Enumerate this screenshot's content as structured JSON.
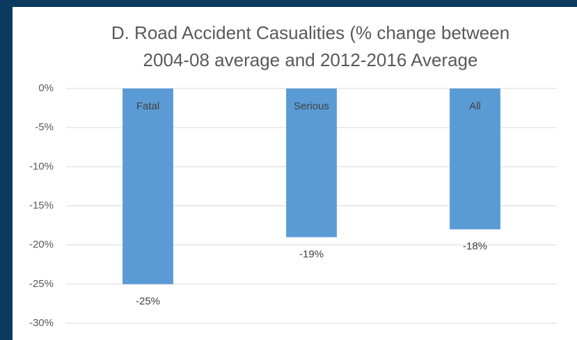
{
  "chart_data": {
    "type": "bar",
    "title": [
      "D. Road Accident Casualities (% change between",
      "2004-08 average and 2012-2016 Average"
    ],
    "categories": [
      "Fatal",
      "Serious",
      "All"
    ],
    "values": [
      -25,
      -19,
      -18
    ],
    "value_labels": [
      "-25%",
      "-19%",
      "-18%"
    ],
    "color": "#5b9bd5",
    "ylim": [
      -30,
      0
    ],
    "yticks": [
      {
        "value": 0,
        "label": "0%"
      },
      {
        "value": -5,
        "label": "-5%"
      },
      {
        "value": -10,
        "label": "-10%"
      },
      {
        "value": -15,
        "label": "-15%"
      },
      {
        "value": -20,
        "label": "-20%"
      },
      {
        "value": -25,
        "label": "-25%"
      },
      {
        "value": -30,
        "label": "-30%"
      }
    ],
    "grid": true
  }
}
